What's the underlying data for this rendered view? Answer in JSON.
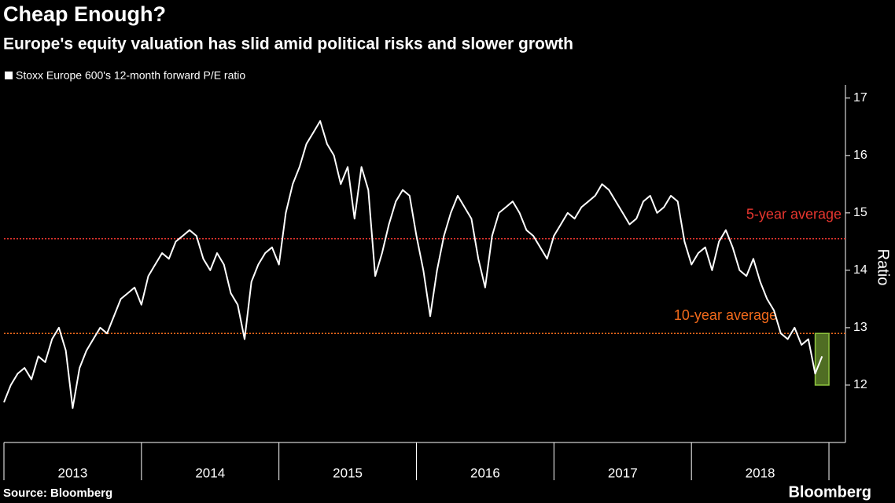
{
  "chart_data": {
    "type": "line",
    "title": "Cheap Enough?",
    "subtitle": "Europe's equity valuation has slid amid political risks and slower growth",
    "source": "Source: Bloomberg",
    "brand": "Bloomberg",
    "y_axis_label": "Ratio",
    "xlim": [
      2013,
      2019.12
    ],
    "ylim": [
      11,
      17.23
    ],
    "yticks": [
      12,
      13,
      14,
      15,
      16,
      17
    ],
    "xticks": [
      2013,
      2014,
      2015,
      2016,
      2017,
      2018,
      2019
    ],
    "year_labels": [
      {
        "value": 2013.5,
        "label": "2013"
      },
      {
        "value": 2014.5,
        "label": "2014"
      },
      {
        "value": 2015.5,
        "label": "2015"
      },
      {
        "value": 2016.5,
        "label": "2016"
      },
      {
        "value": 2017.5,
        "label": "2017"
      },
      {
        "value": 2018.5,
        "label": "2018"
      }
    ],
    "series": [
      {
        "name": "Stoxx Europe 600's 12-month forward P/E ratio",
        "color": "#ffffff",
        "x": [
          2013.0,
          2013.05,
          2013.1,
          2013.15,
          2013.2,
          2013.25,
          2013.3,
          2013.35,
          2013.4,
          2013.45,
          2013.5,
          2013.55,
          2013.6,
          2013.65,
          2013.7,
          2013.75,
          2013.8,
          2013.85,
          2013.9,
          2013.95,
          2014.0,
          2014.05,
          2014.1,
          2014.15,
          2014.2,
          2014.25,
          2014.3,
          2014.35,
          2014.4,
          2014.45,
          2014.5,
          2014.55,
          2014.6,
          2014.65,
          2014.7,
          2014.75,
          2014.8,
          2014.85,
          2014.9,
          2014.95,
          2015.0,
          2015.05,
          2015.1,
          2015.15,
          2015.2,
          2015.25,
          2015.3,
          2015.35,
          2015.4,
          2015.45,
          2015.5,
          2015.55,
          2015.6,
          2015.65,
          2015.7,
          2015.75,
          2015.8,
          2015.85,
          2015.9,
          2015.95,
          2016.0,
          2016.05,
          2016.1,
          2016.15,
          2016.2,
          2016.25,
          2016.3,
          2016.35,
          2016.4,
          2016.45,
          2016.5,
          2016.55,
          2016.6,
          2016.65,
          2016.7,
          2016.75,
          2016.8,
          2016.85,
          2016.9,
          2016.95,
          2017.0,
          2017.05,
          2017.1,
          2017.15,
          2017.2,
          2017.25,
          2017.3,
          2017.35,
          2017.4,
          2017.45,
          2017.5,
          2017.55,
          2017.6,
          2017.65,
          2017.7,
          2017.75,
          2017.8,
          2017.85,
          2017.9,
          2017.95,
          2018.0,
          2018.05,
          2018.1,
          2018.15,
          2018.2,
          2018.25,
          2018.3,
          2018.35,
          2018.4,
          2018.45,
          2018.5,
          2018.55,
          2018.6,
          2018.65,
          2018.7,
          2018.75,
          2018.8,
          2018.85,
          2018.9,
          2018.95
        ],
        "values": [
          11.7,
          12.0,
          12.2,
          12.3,
          12.1,
          12.5,
          12.4,
          12.8,
          13.0,
          12.6,
          11.6,
          12.3,
          12.6,
          12.8,
          13.0,
          12.9,
          13.2,
          13.5,
          13.6,
          13.7,
          13.4,
          13.9,
          14.1,
          14.3,
          14.2,
          14.5,
          14.6,
          14.7,
          14.6,
          14.2,
          14.0,
          14.3,
          14.1,
          13.6,
          13.4,
          12.8,
          13.8,
          14.1,
          14.3,
          14.4,
          14.1,
          15.0,
          15.5,
          15.8,
          16.2,
          16.4,
          16.6,
          16.2,
          16.0,
          15.5,
          15.8,
          14.9,
          15.8,
          15.4,
          13.9,
          14.3,
          14.8,
          15.2,
          15.4,
          15.3,
          14.6,
          14.0,
          13.2,
          14.0,
          14.6,
          15.0,
          15.3,
          15.1,
          14.9,
          14.2,
          13.7,
          14.6,
          15.0,
          15.1,
          15.2,
          15.0,
          14.7,
          14.6,
          14.4,
          14.2,
          14.6,
          14.8,
          15.0,
          14.9,
          15.1,
          15.2,
          15.3,
          15.5,
          15.4,
          15.2,
          15.0,
          14.8,
          14.9,
          15.2,
          15.3,
          15.0,
          15.1,
          15.3,
          15.2,
          14.5,
          14.1,
          14.3,
          14.4,
          14.0,
          14.5,
          14.7,
          14.4,
          14.0,
          13.9,
          14.2,
          13.8,
          13.5,
          13.3,
          12.9,
          12.8,
          13.0,
          12.7,
          12.8,
          12.2,
          12.5
        ]
      }
    ],
    "reference_lines": [
      {
        "label": "5-year average",
        "value": 14.55,
        "color": "#e8362f"
      },
      {
        "label": "10-year average",
        "value": 12.9,
        "color": "#f26a1b"
      }
    ],
    "highlight": {
      "xrange": [
        2018.9,
        2019.0
      ],
      "yrange": [
        12.0,
        12.9
      ],
      "color": "#8fc63f"
    }
  }
}
